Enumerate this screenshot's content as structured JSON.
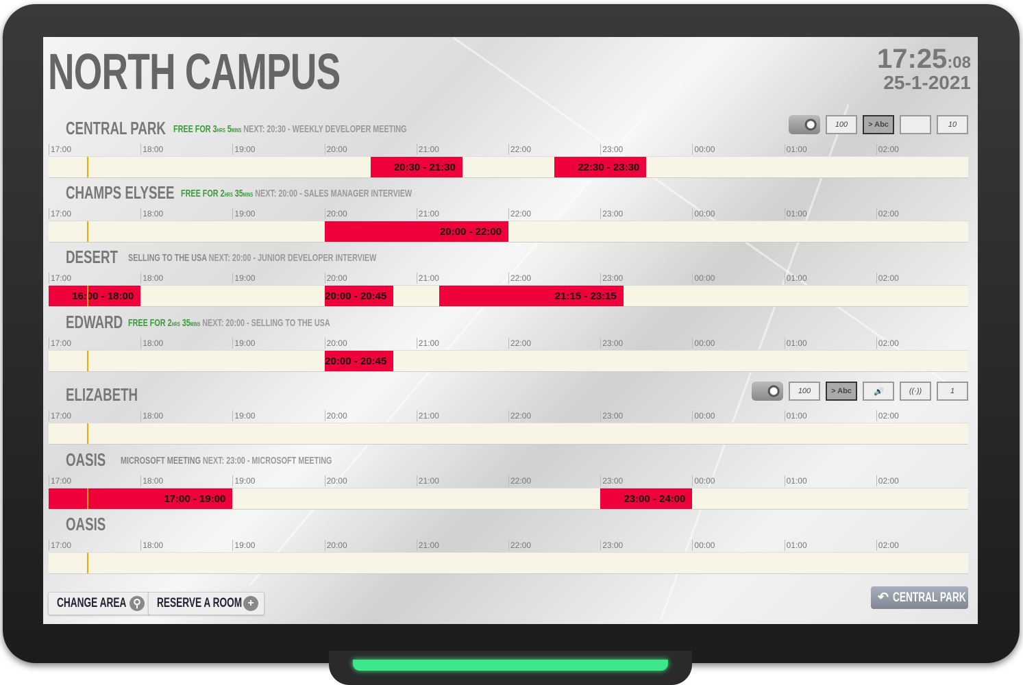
{
  "campus_title": "NORTH CAMPUS",
  "clock": {
    "time": "17:25",
    "seconds": ":08",
    "date": "25-1-2021"
  },
  "current_time_hours": 17.4167,
  "timeline_start_hour": 17,
  "timeline_hours": 10,
  "ticks": [
    "17:00",
    "18:00",
    "19:00",
    "20:00",
    "21:00",
    "22:00",
    "23:00",
    "00:00",
    "01:00",
    "02:00"
  ],
  "colors": {
    "booking": "#f0003a",
    "free": "#3a9a3a",
    "track": "#f8f5e6",
    "now_marker": "#f0a800"
  },
  "rooms": [
    {
      "name": "CENTRAL PARK",
      "status": {
        "type": "free",
        "text": "FREE FOR 3",
        "u1": "HRS",
        "n2": " 5",
        "u2": "MINS"
      },
      "next": "NEXT: 20:30 - WEEKLY DEVELOPER MEETING",
      "bookings": [
        {
          "start": 20.5,
          "end": 21.5,
          "label": "20:30 - 21:30"
        },
        {
          "start": 22.5,
          "end": 23.5,
          "label": "22:30 - 23:30"
        }
      ],
      "amenities": [
        {
          "icon": "projector-icon",
          "text": ""
        },
        {
          "icon": "whiteboard-icon",
          "text": "100"
        },
        {
          "icon": "screen-icon",
          "text": "> Abc"
        },
        {
          "icon": "video-camera-icon",
          "text": ""
        },
        {
          "icon": "capacity-icon",
          "text": "10"
        }
      ]
    },
    {
      "name": "CHAMPS ELYSEE",
      "status": {
        "type": "free",
        "text": "FREE FOR 2",
        "u1": "HRS",
        "n2": " 35",
        "u2": "MINS"
      },
      "next": "NEXT: 20:00 - SALES MANAGER INTERVIEW",
      "bookings": [
        {
          "start": 20,
          "end": 22,
          "label": "20:00 - 22:00"
        }
      ]
    },
    {
      "name": "DESERT",
      "status": {
        "type": "busy",
        "text": "SELLING TO THE USA"
      },
      "next": "NEXT: 20:00 - JUNIOR DEVELOPER INTERVIEW",
      "bookings": [
        {
          "start": 17,
          "end": 18,
          "label": "16:00 - 18:00"
        },
        {
          "start": 20,
          "end": 20.75,
          "label": "20:00 - 20:45"
        },
        {
          "start": 21.25,
          "end": 23.25,
          "label": "21:15 - 23:15"
        }
      ]
    },
    {
      "name": "EDWARD",
      "status": {
        "type": "free",
        "text": "FREE FOR 2",
        "u1": "HRS",
        "n2": " 35",
        "u2": "MINS"
      },
      "next": "NEXT: 20:00 - SELLING TO THE USA",
      "bookings": [
        {
          "start": 20,
          "end": 20.75,
          "label": "20:00 - 20:45"
        }
      ]
    },
    {
      "name": "ELIZABETH",
      "bookings": [],
      "amenities": [
        {
          "icon": "projector-icon",
          "text": ""
        },
        {
          "icon": "whiteboard-icon",
          "text": "100"
        },
        {
          "icon": "screen-icon",
          "text": "> Abc"
        },
        {
          "icon": "speaker-icon",
          "text": "🔊"
        },
        {
          "icon": "wifi-icon",
          "text": "((·))"
        },
        {
          "icon": "capacity-icon",
          "text": "1"
        }
      ]
    },
    {
      "name": "OASIS",
      "status": {
        "type": "busy",
        "text": "MICROSOFT MEETING"
      },
      "next": "NEXT: 23:00 - MICROSOFT MEETING",
      "bookings": [
        {
          "start": 17,
          "end": 19,
          "label": "17:00 - 19:00"
        },
        {
          "start": 23,
          "end": 24,
          "label": "23:00 - 24:00"
        }
      ]
    },
    {
      "name": "OASIS",
      "bookings": []
    }
  ],
  "buttons": {
    "change_area": "CHANGE AREA",
    "reserve": "RESERVE A ROOM",
    "back": "CENTRAL PARK"
  }
}
